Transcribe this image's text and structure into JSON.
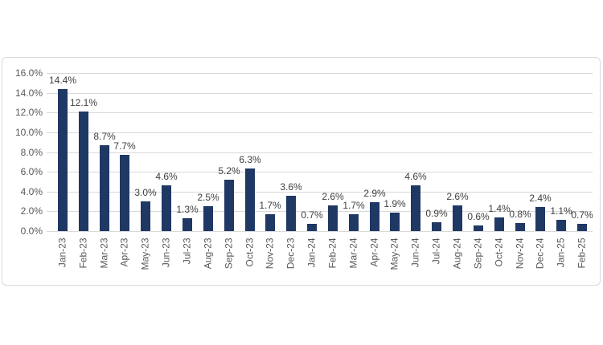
{
  "chart_data": {
    "type": "bar",
    "title": "",
    "xlabel": "",
    "ylabel": "",
    "categories": [
      "Jan-23",
      "Feb-23",
      "Mar-23",
      "Apr-23",
      "May-23",
      "Jun-23",
      "Jul-23",
      "Aug-23",
      "Sep-23",
      "Oct-23",
      "Nov-23",
      "Dec-23",
      "Jan-24",
      "Feb-24",
      "Mar-24",
      "Apr-24",
      "May-24",
      "Jun-24",
      "Jul-24",
      "Aug-24",
      "Sep-24",
      "Oct-24",
      "Nov-24",
      "Dec-24",
      "Jan-25",
      "Feb-25"
    ],
    "values": [
      14.4,
      12.1,
      8.7,
      7.7,
      3.0,
      4.6,
      1.3,
      2.5,
      5.2,
      6.3,
      1.7,
      3.6,
      0.7,
      2.6,
      1.7,
      2.9,
      1.9,
      4.6,
      0.9,
      2.6,
      0.6,
      1.4,
      0.8,
      2.4,
      1.1,
      0.7
    ],
    "data_labels": [
      "14.4%",
      "12.1%",
      "8.7%",
      "7.7%",
      "3.0%",
      "4.6%",
      "1.3%",
      "2.5%",
      "5.2%",
      "6.3%",
      "1.7%",
      "3.6%",
      "0.7%",
      "2.6%",
      "1.7%",
      "2.9%",
      "1.9%",
      "4.6%",
      "0.9%",
      "2.6%",
      "0.6%",
      "1.4%",
      "0.8%",
      "2.4%",
      "1.1%",
      "0.7%"
    ],
    "y_ticks": [
      "0.0%",
      "2.0%",
      "4.0%",
      "6.0%",
      "8.0%",
      "10.0%",
      "12.0%",
      "14.0%",
      "16.0%"
    ],
    "ylim": [
      0,
      16
    ],
    "y_tick_step": 2,
    "grid": true,
    "legend": "none",
    "colors": {
      "bar": "#1f3864",
      "gridline": "#d9d9d9",
      "axis_tick_label": "#595959",
      "data_label": "#404040",
      "frame_border": "#d9d9d9",
      "background": "#ffffff"
    }
  }
}
